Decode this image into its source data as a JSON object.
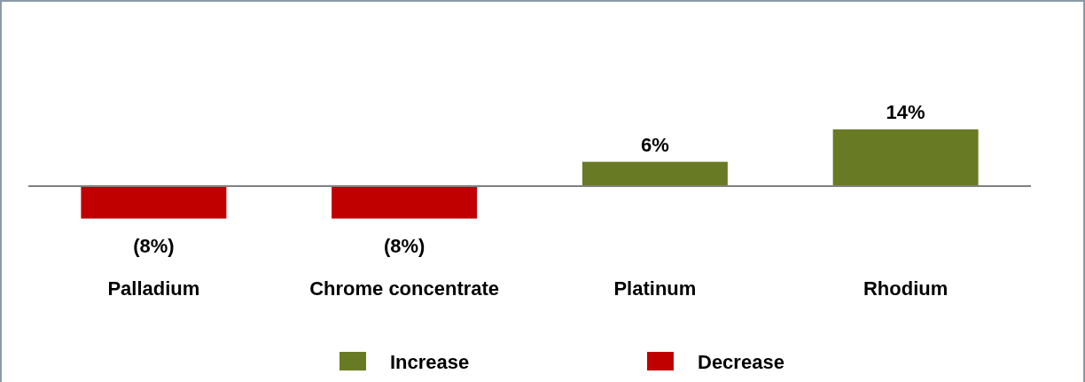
{
  "chart_data": {
    "type": "bar",
    "categories": [
      "Palladium",
      "Chrome concentrate",
      "Platinum",
      "Rhodium"
    ],
    "series": [
      {
        "name": "Increase",
        "color": "#687a23",
        "values": [
          null,
          null,
          6,
          14
        ],
        "value_labels": [
          null,
          null,
          "6%",
          "14%"
        ]
      },
      {
        "name": "Decrease",
        "color": "#c00000",
        "values": [
          -8,
          -8,
          null,
          null
        ],
        "value_labels": [
          "(8%)",
          "(8%)",
          null,
          null
        ]
      }
    ],
    "legend": "bottom"
  }
}
